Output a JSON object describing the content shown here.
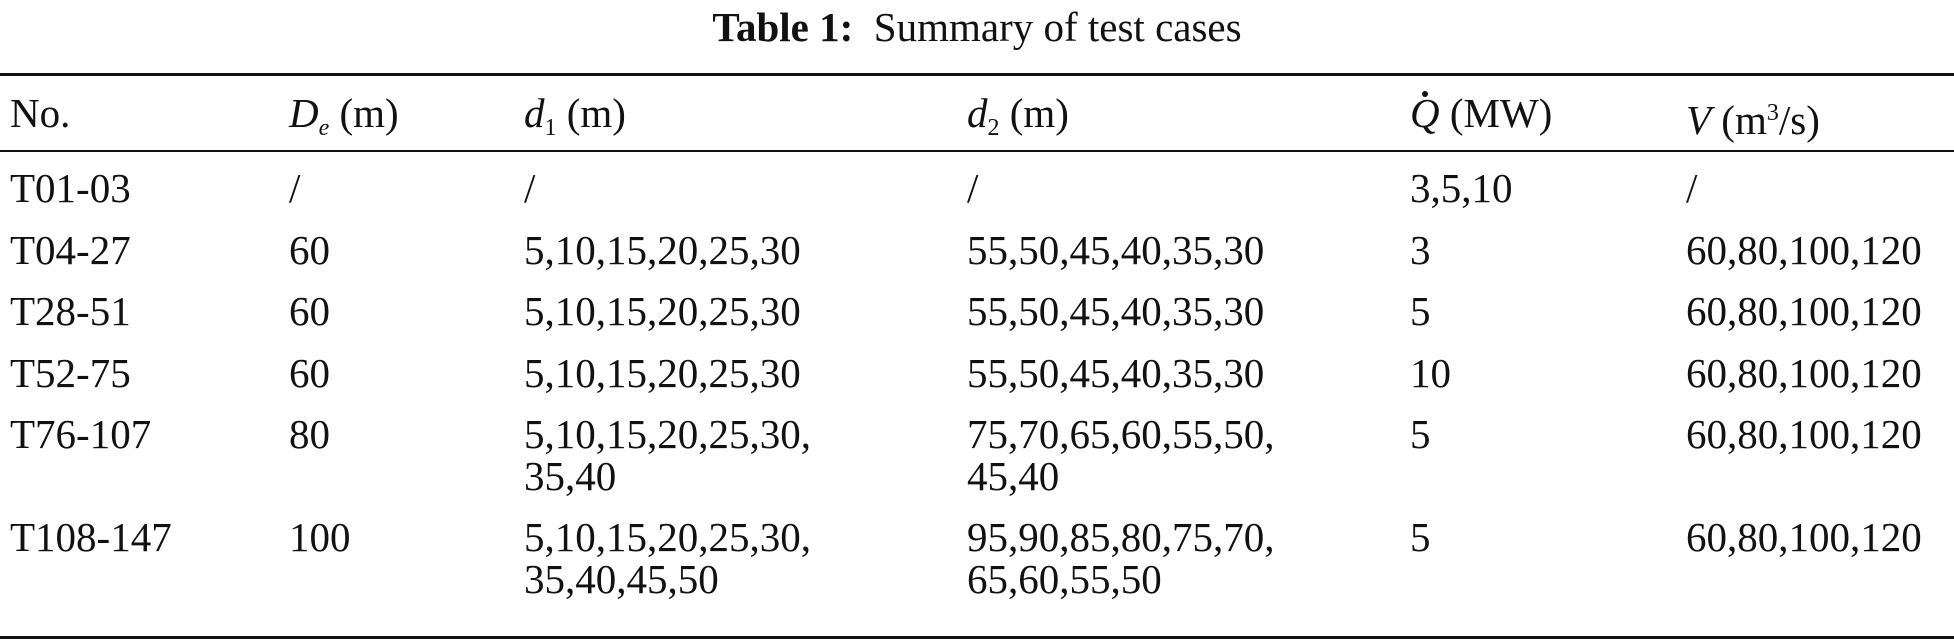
{
  "caption": {
    "label": "Table 1:",
    "title": "Summary of test cases"
  },
  "table": {
    "headers": {
      "no": "No.",
      "de_sym": "D",
      "de_sub": "e",
      "de_unit": "(m)",
      "d1_sym": "d",
      "d1_sub": "1",
      "d1_unit": "(m)",
      "d2_sym": "d",
      "d2_sub": "2",
      "d2_unit": "(m)",
      "q_sym": "Q",
      "q_unit": "(MW)",
      "v_sym": "V",
      "v_unit_pre": "(m",
      "v_unit_sup": "3",
      "v_unit_post": "/s)"
    },
    "rows": [
      {
        "no": "T01-03",
        "de": "/",
        "d1": [
          "/"
        ],
        "d2": [
          "/"
        ],
        "q": "3,5,10",
        "v": "/"
      },
      {
        "no": "T04-27",
        "de": "60",
        "d1": [
          "5,10,15,20,25,30"
        ],
        "d2": [
          "55,50,45,40,35,30"
        ],
        "q": "3",
        "v": "60,80,100,120"
      },
      {
        "no": "T28-51",
        "de": "60",
        "d1": [
          "5,10,15,20,25,30"
        ],
        "d2": [
          "55,50,45,40,35,30"
        ],
        "q": "5",
        "v": "60,80,100,120"
      },
      {
        "no": "T52-75",
        "de": "60",
        "d1": [
          "5,10,15,20,25,30"
        ],
        "d2": [
          "55,50,45,40,35,30"
        ],
        "q": "10",
        "v": "60,80,100,120"
      },
      {
        "no": "T76-107",
        "de": "80",
        "d1": [
          "5,10,15,20,25,30,",
          "35,40"
        ],
        "d2": [
          "75,70,65,60,55,50,",
          "45,40"
        ],
        "q": "5",
        "v": "60,80,100,120"
      },
      {
        "no": "T108-147",
        "de": "100",
        "d1": [
          "5,10,15,20,25,30,",
          "35,40,45,50"
        ],
        "d2": [
          "95,90,85,80,75,70,",
          "65,60,55,50"
        ],
        "q": "5",
        "v": "60,80,100,120"
      }
    ]
  }
}
